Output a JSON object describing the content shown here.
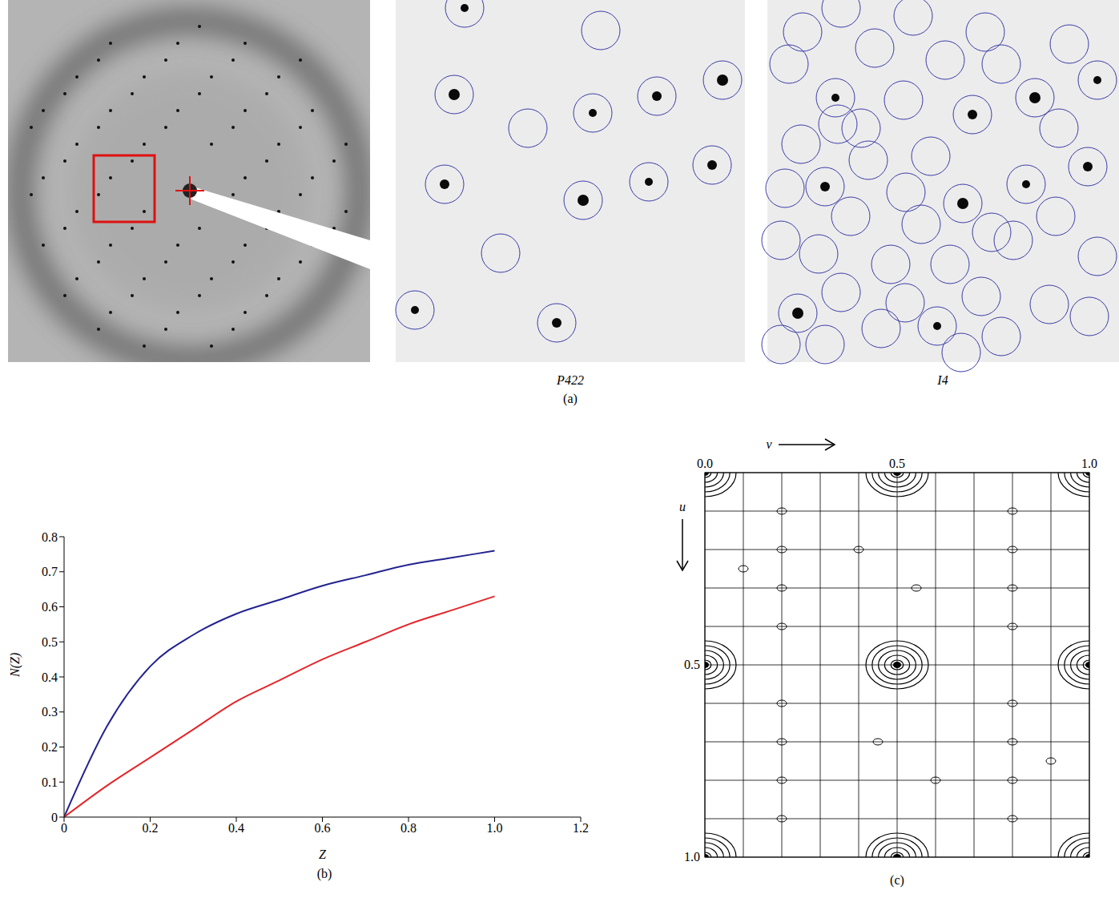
{
  "panel_a": {
    "label": "(a)",
    "captions": [
      "P422",
      "I4"
    ]
  },
  "chart_data": {
    "type": "line",
    "panel_label": "(b)",
    "xlabel": "Z",
    "ylabel": "N(Z)",
    "x": [
      0,
      0.1,
      0.2,
      0.3,
      0.4,
      0.5,
      0.6,
      0.7,
      0.8,
      0.9,
      1.0
    ],
    "xlim": [
      0,
      1.2
    ],
    "xticks": [
      0,
      0.2,
      0.4,
      0.6,
      0.8,
      {
        "value": 1,
        "label": "1.0"
      },
      1.2
    ],
    "ylim": [
      0,
      0.8
    ],
    "yticks": [
      0,
      0.1,
      0.2,
      0.3,
      0.4,
      0.5,
      0.6,
      0.7,
      0.8
    ],
    "grid": false,
    "series": [
      {
        "color": "#23238f",
        "values": [
          0,
          0.26,
          0.43,
          0.52,
          0.58,
          0.62,
          0.66,
          0.69,
          0.72,
          0.74,
          0.76
        ]
      },
      {
        "color": "#e3262a",
        "values": [
          0,
          0.09,
          0.17,
          0.25,
          0.33,
          0.39,
          0.45,
          0.5,
          0.55,
          0.59,
          0.63
        ]
      }
    ]
  },
  "panel_c": {
    "label": "(c)",
    "type": "contour",
    "xlabel": "v",
    "ylabel": "u",
    "xlim": [
      0,
      1
    ],
    "ylim": [
      0,
      1
    ],
    "xticks": [
      {
        "value": 0,
        "label": "0.0"
      },
      {
        "value": 0.5,
        "label": "0.5"
      },
      {
        "value": 1,
        "label": "1.0"
      }
    ],
    "yticks": [
      {
        "value": 0.5,
        "label": "0.5"
      },
      {
        "value": 1,
        "label": "1.0"
      }
    ],
    "grid": [
      0,
      0.1,
      0.2,
      0.3,
      0.4,
      0.5,
      0.6,
      0.7,
      0.8,
      0.9,
      1
    ],
    "peaks": [
      {
        "u": 0,
        "v": 0
      },
      {
        "u": 0,
        "v": 0.5
      },
      {
        "u": 0,
        "v": 1
      },
      {
        "u": 0.5,
        "v": 0
      },
      {
        "u": 0.5,
        "v": 0.5
      },
      {
        "u": 0.5,
        "v": 1
      },
      {
        "u": 1,
        "v": 0
      },
      {
        "u": 1,
        "v": 0.5
      },
      {
        "u": 1,
        "v": 1
      }
    ],
    "minor_peaks": [
      {
        "u": 0.1,
        "v": 0.2
      },
      {
        "u": 0.2,
        "v": 0.2
      },
      {
        "u": 0.3,
        "v": 0.2
      },
      {
        "u": 0.4,
        "v": 0.2
      },
      {
        "u": 0.6,
        "v": 0.2
      },
      {
        "u": 0.7,
        "v": 0.2
      },
      {
        "u": 0.8,
        "v": 0.2
      },
      {
        "u": 0.9,
        "v": 0.2
      },
      {
        "u": 0.1,
        "v": 0.8
      },
      {
        "u": 0.2,
        "v": 0.8
      },
      {
        "u": 0.3,
        "v": 0.8
      },
      {
        "u": 0.4,
        "v": 0.8
      },
      {
        "u": 0.6,
        "v": 0.8
      },
      {
        "u": 0.7,
        "v": 0.8
      },
      {
        "u": 0.8,
        "v": 0.8
      },
      {
        "u": 0.9,
        "v": 0.8
      },
      {
        "u": 0.2,
        "v": 0.4
      },
      {
        "u": 0.3,
        "v": 0.55
      },
      {
        "u": 0.7,
        "v": 0.45
      },
      {
        "u": 0.8,
        "v": 0.6
      },
      {
        "u": 0.25,
        "v": 0.1
      },
      {
        "u": 0.75,
        "v": 0.9
      }
    ]
  }
}
